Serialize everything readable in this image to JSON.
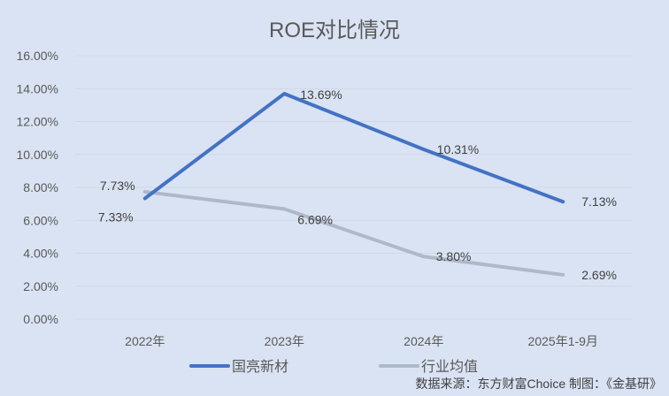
{
  "chart_data": {
    "type": "line",
    "title": "ROE对比情况",
    "categories": [
      "2022年",
      "2023年",
      "2024年",
      "2025年1-9月"
    ],
    "series": [
      {
        "name": "国亮新材",
        "values": [
          7.33,
          13.69,
          10.31,
          7.13
        ],
        "labels": [
          "7.33%",
          "13.69%",
          "10.31%",
          "7.13%"
        ],
        "color": "#4472c4"
      },
      {
        "name": "行业均值",
        "values": [
          7.73,
          6.69,
          3.8,
          2.69
        ],
        "labels": [
          "7.73%",
          "6.69%",
          "3.80%",
          "2.69%"
        ],
        "color": "#adb9ca"
      }
    ],
    "xlabel": "",
    "ylabel": "",
    "ylim": [
      0,
      16
    ],
    "yticks": [
      "0.00%",
      "2.00%",
      "4.00%",
      "6.00%",
      "8.00%",
      "10.00%",
      "12.00%",
      "14.00%",
      "16.00%"
    ],
    "grid": true,
    "legend_position": "bottom"
  },
  "footer": {
    "source": "数据来源：东方财富Choice   制图：《金基研》"
  }
}
